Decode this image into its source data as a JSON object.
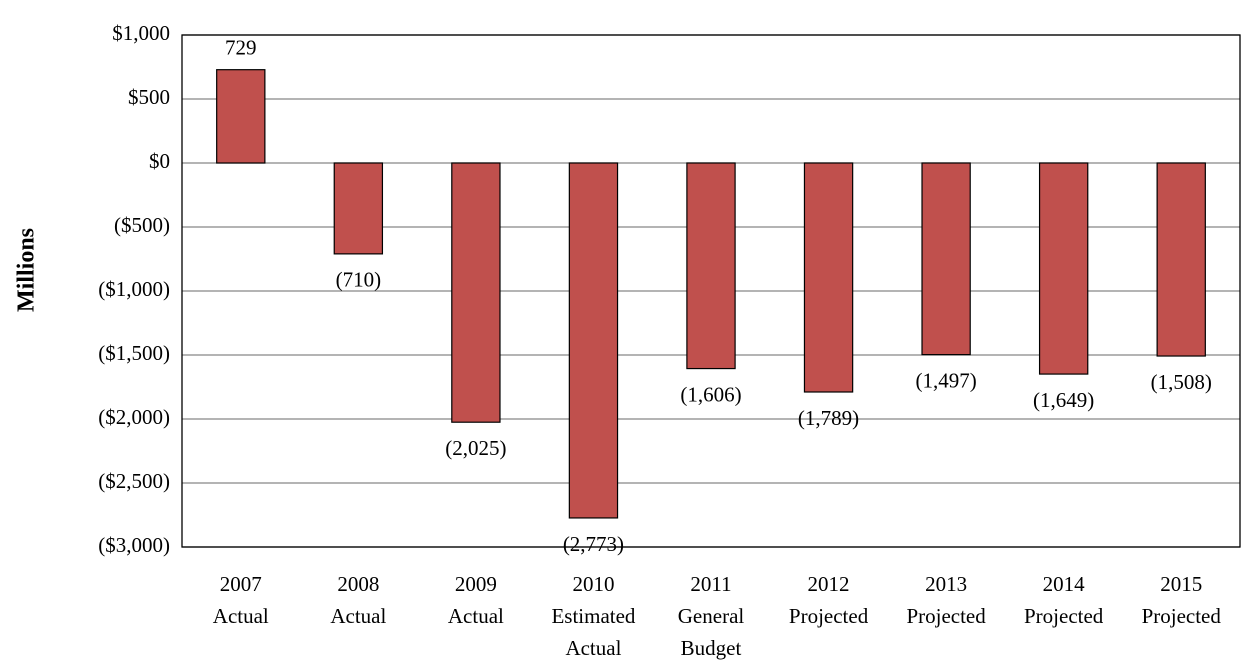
{
  "chart_data": {
    "type": "bar",
    "y_label": "Millions",
    "categories": [
      [
        "2007",
        "Actual"
      ],
      [
        "2008",
        "Actual"
      ],
      [
        "2009",
        "Actual"
      ],
      [
        "2010",
        "Estimated",
        "Actual"
      ],
      [
        "2011",
        "General",
        "Budget"
      ],
      [
        "2012",
        "Projected"
      ],
      [
        "2013",
        "Projected"
      ],
      [
        "2014",
        "Projected"
      ],
      [
        "2015",
        "Projected"
      ]
    ],
    "values": [
      729,
      -710,
      -2025,
      -2773,
      -1606,
      -1789,
      -1497,
      -1649,
      -1508
    ],
    "value_labels": [
      "729",
      "(710)",
      "(2,025)",
      "(2,773)",
      "(1,606)",
      "(1,789)",
      "(1,497)",
      "(1,649)",
      "(1,508)"
    ],
    "color": "#c0504d",
    "ylim": [
      -3000,
      1000
    ],
    "yticks": [
      {
        "value": -3000,
        "label": "($3,000)"
      },
      {
        "value": -2500,
        "label": "($2,500)"
      },
      {
        "value": -2000,
        "label": "($2,000)"
      },
      {
        "value": -1500,
        "label": "($1,500)"
      },
      {
        "value": -1000,
        "label": "($1,000)"
      },
      {
        "value": -500,
        "label": "($500)"
      },
      {
        "value": 0,
        "label": "$0"
      },
      {
        "value": 500,
        "label": "$500"
      },
      {
        "value": 1000,
        "label": "$1,000"
      }
    ],
    "grid": true
  }
}
